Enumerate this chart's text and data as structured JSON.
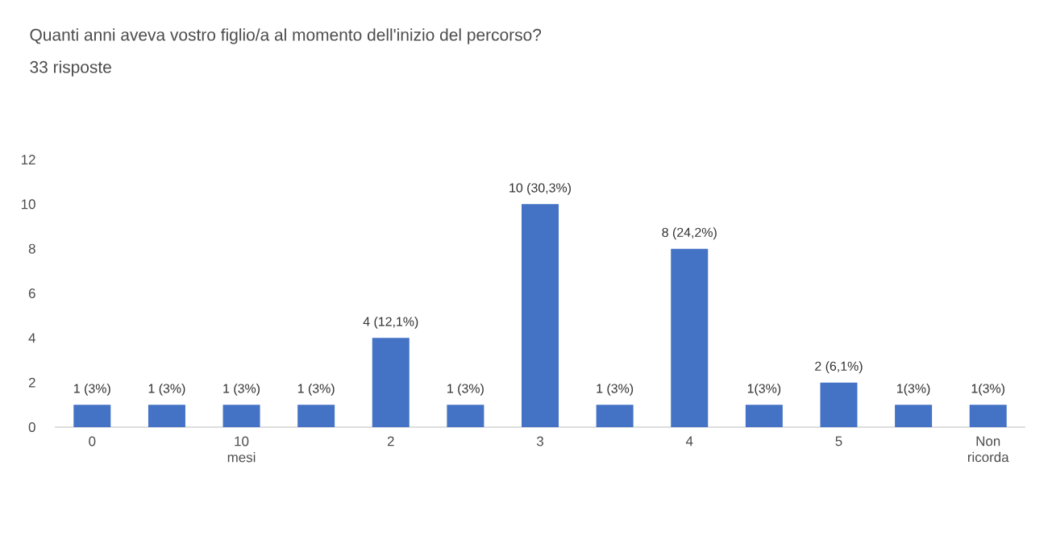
{
  "chart_data": {
    "type": "bar",
    "title": "Quanti anni aveva vostro figlio/a al momento dell'inizio del percorso?",
    "subtitle": "33 risposte",
    "categories": [
      "0",
      null,
      "10 mesi",
      null,
      "2",
      null,
      "3",
      null,
      "4",
      null,
      "5",
      null,
      "Non ricorda"
    ],
    "values": [
      1,
      1,
      1,
      1,
      4,
      1,
      10,
      1,
      8,
      1,
      2,
      1,
      1
    ],
    "value_labels": [
      "1 (3%)",
      "1 (3%)",
      "1 (3%)",
      "1 (3%)",
      "4 (12,1%)",
      "1 (3%)",
      "10 (30,3%)",
      "1 (3%)",
      "8 (24,2%)",
      "1(3%)",
      "2 (6,1%)",
      "1(3%)",
      "1(3%)"
    ],
    "color": "#4472c4",
    "ylim": [
      0,
      12
    ],
    "yticks": [
      0,
      2,
      4,
      6,
      8,
      10,
      12
    ]
  }
}
